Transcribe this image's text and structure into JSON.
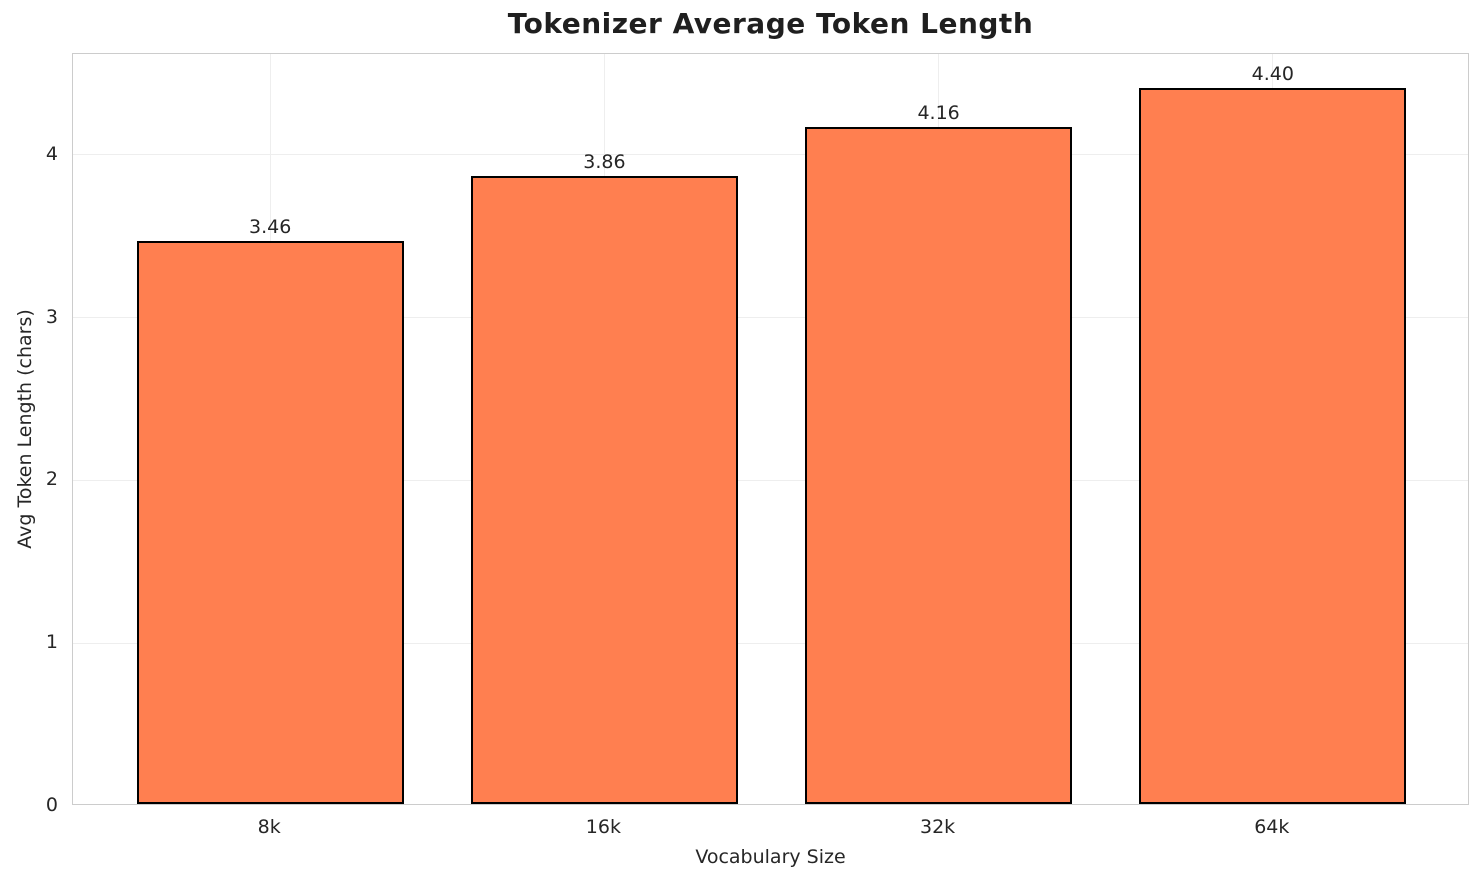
{
  "chart_data": {
    "type": "bar",
    "title": "Tokenizer Average Token Length",
    "xlabel": "Vocabulary Size",
    "ylabel": "Avg Token Length (chars)",
    "categories": [
      "8k",
      "16k",
      "32k",
      "64k"
    ],
    "values": [
      3.46,
      3.86,
      4.16,
      4.4
    ],
    "value_labels": [
      "3.46",
      "3.86",
      "4.16",
      "4.40"
    ],
    "yticks": [
      0,
      1,
      2,
      3,
      4
    ],
    "ytick_labels": [
      "0",
      "1",
      "2",
      "3",
      "4"
    ],
    "ylim": [
      0,
      4.62
    ],
    "grid": true,
    "legend": null,
    "colors": {
      "bar_fill": "#FF7F50",
      "bar_edge": "#000000",
      "gridline": "#eeeeee",
      "spine": "#cccccc",
      "title_text": "#1f1f1f",
      "tick_text": "#262626",
      "background": "#ffffff"
    }
  }
}
